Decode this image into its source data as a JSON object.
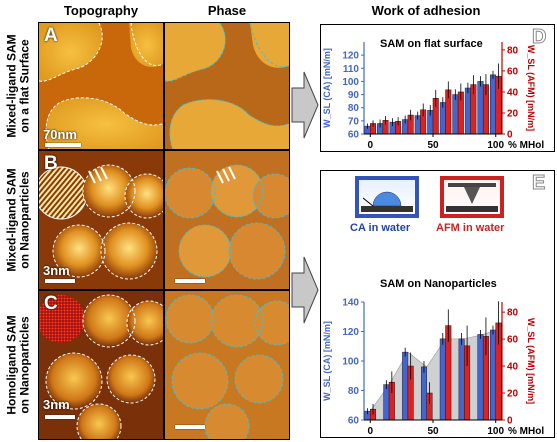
{
  "headers": {
    "topography": "Topography",
    "phase": "Phase",
    "work": "Work of adhesion"
  },
  "rows": [
    {
      "label_line1": "Mixed-ligand SAM",
      "label_line2": "on a flat Surface",
      "panel_label": "A",
      "scale": "70nm"
    },
    {
      "label_line1": "Mixed-ligand SAM",
      "label_line2": "on Nanoparticles",
      "panel_label": "B",
      "scale": "3nm"
    },
    {
      "label_line1": "Homoligand SAM",
      "label_line2": "on Nanoparticles",
      "panel_label": "C",
      "scale": "3nm"
    }
  ],
  "legend": {
    "ca": "CA in water",
    "afm": "AFM in water",
    "panel_label": "E"
  },
  "colors": {
    "ca": "#4466cc",
    "afm": "#dd2222",
    "ca_frame": "#3355bb",
    "afm_frame": "#cc2222",
    "red_axis": "#c00000"
  },
  "chart_data": [
    {
      "panel_label": "D",
      "type": "bar",
      "title": "SAM on flat surface",
      "ylabel_left": "W_SL (CA) [mN/m]",
      "ylabel_right": "W_SL (AFM) [mN/m]",
      "xlabel": "% MHol",
      "x_ticks": [
        "0",
        "50",
        "100"
      ],
      "xlim": [
        -5,
        105
      ],
      "ylim_left": [
        60,
        130
      ],
      "y_ticks_left": [
        "60",
        "70",
        "80",
        "90",
        "100",
        "110",
        "120"
      ],
      "ylim_right": [
        0,
        87.5
      ],
      "y_ticks_right": [
        "0",
        "20",
        "40",
        "60",
        "80"
      ],
      "x": [
        0,
        10,
        20,
        30,
        40,
        50,
        60,
        70,
        80,
        90,
        100
      ],
      "series": [
        {
          "name": "CA",
          "axis": "left",
          "values": [
            66,
            68,
            69,
            71,
            74,
            78,
            84,
            90,
            95,
            100,
            105
          ],
          "err": [
            2,
            3,
            3,
            3,
            3,
            4,
            4,
            4,
            4,
            4,
            3
          ]
        },
        {
          "name": "AFM",
          "axis": "right",
          "values": [
            10,
            13,
            12,
            18,
            23,
            34,
            42,
            40,
            47,
            47,
            55
          ],
          "err": [
            3,
            4,
            4,
            5,
            6,
            8,
            8,
            8,
            9,
            10,
            12
          ]
        }
      ]
    },
    {
      "panel_label": "E",
      "type": "bar",
      "title": "SAM on Nanoparticles",
      "ylabel_left": "W_SL (CA) [mN/m]",
      "ylabel_right": "W_SL (AFM) [mN/m]",
      "xlabel": "% MHol",
      "x_ticks": [
        "0",
        "50",
        "100"
      ],
      "xlim": [
        -5,
        105
      ],
      "ylim_left": [
        60,
        140
      ],
      "y_ticks_left": [
        "60",
        "80",
        "100",
        "120",
        "140"
      ],
      "ylim_right": [
        0,
        87.5
      ],
      "y_ticks_right": [
        "0",
        "20",
        "40",
        "60",
        "80"
      ],
      "x": [
        0,
        15,
        30,
        45,
        60,
        75,
        90,
        100
      ],
      "series": [
        {
          "name": "CA",
          "axis": "left",
          "values": [
            66,
            84,
            106,
            96,
            115,
            115,
            118,
            121
          ],
          "err": [
            2,
            3,
            3,
            4,
            4,
            4,
            3,
            3
          ]
        },
        {
          "name": "AFM",
          "axis": "right",
          "values": [
            8,
            28,
            40,
            20,
            70,
            55,
            62,
            72
          ],
          "err": [
            4,
            8,
            10,
            8,
            12,
            15,
            14,
            16
          ]
        }
      ]
    }
  ]
}
